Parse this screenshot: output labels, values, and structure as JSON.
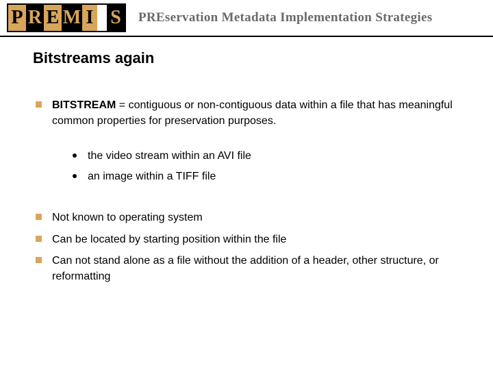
{
  "header": {
    "logo_letters": [
      "P",
      "R",
      "E",
      "M",
      "I",
      "",
      "S"
    ],
    "title": "PREservation Metadata Implementation Strategies"
  },
  "slide": {
    "title": "Bitstreams again",
    "definition": {
      "term": "BITSTREAM",
      "text": " = contiguous or non-contiguous data within a file that has meaningful common properties for preservation purposes."
    },
    "examples": [
      "the video stream within an AVI file",
      "an image within a TIFF file"
    ],
    "points": [
      "Not known to operating system",
      "Can be located by starting position within the file",
      "Can not stand alone as a file without the addition of a header, other structure, or reformatting"
    ]
  },
  "colors": {
    "accent": "#d8a65a",
    "text": "#000000",
    "header_text": "#6a6a6a",
    "background": "#ffffff"
  },
  "typography": {
    "title_fontsize": 22,
    "body_fontsize": 16,
    "header_fontsize": 19
  }
}
